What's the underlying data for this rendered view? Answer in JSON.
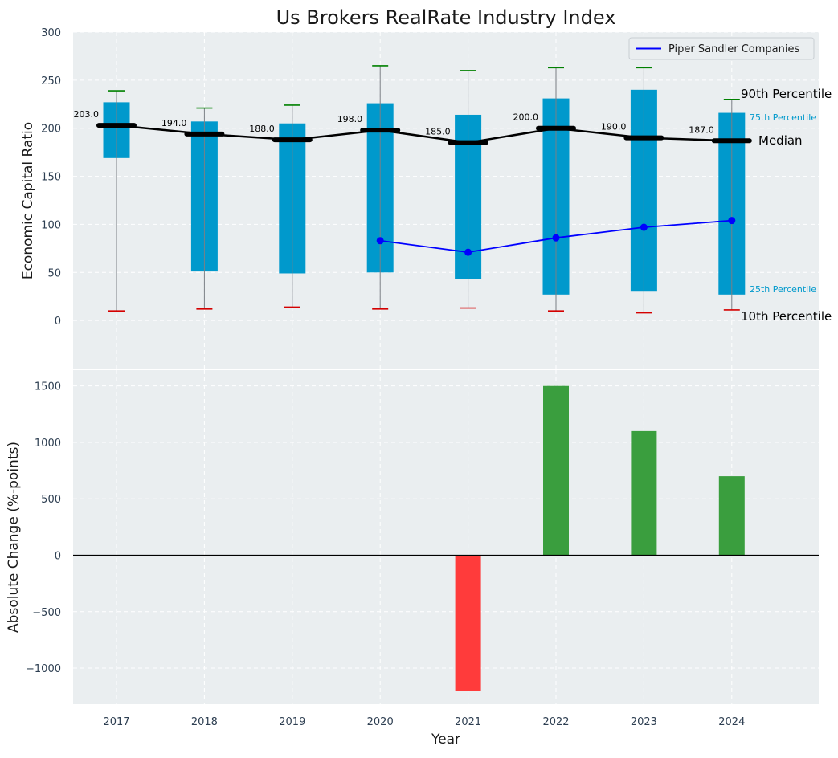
{
  "chart_data": [
    {
      "type": "box",
      "title": "Us Brokers RealRate Industry Index",
      "ylabel": "Economic Capital Ratio",
      "ylim": [
        -50,
        300
      ],
      "yticks": [
        0,
        50,
        100,
        150,
        200,
        250,
        300
      ],
      "categories": [
        "2017",
        "2018",
        "2019",
        "2020",
        "2021",
        "2022",
        "2023",
        "2024"
      ],
      "p10": [
        10,
        12,
        14,
        12,
        13,
        10,
        8,
        11
      ],
      "p25": [
        169,
        51,
        49,
        50,
        43,
        27,
        30,
        27
      ],
      "median": [
        203.0,
        194.0,
        188.0,
        198.0,
        185.0,
        200.0,
        190.0,
        187.0
      ],
      "median_labels": [
        "203.0",
        "194.0",
        "188.0",
        "198.0",
        "185.0",
        "200.0",
        "190.0",
        "187.0"
      ],
      "p75": [
        227,
        207,
        205,
        226,
        214,
        231,
        240,
        216
      ],
      "p90": [
        239,
        221,
        224,
        265,
        260,
        263,
        263,
        230
      ],
      "series": [
        {
          "name": "Piper Sandler Companies",
          "x": [
            "2020",
            "2021",
            "2022",
            "2023",
            "2024"
          ],
          "values": [
            83,
            71,
            86,
            97,
            104
          ],
          "color": "#0000ff"
        }
      ],
      "legend": {
        "position": "top-right",
        "entries": [
          "Piper Sandler Companies"
        ]
      },
      "annotations": {
        "p90": "90th Percentile",
        "p75": "75th Percentile",
        "median": "Median",
        "p25": "25th Percentile",
        "p10": "10th Percentile"
      },
      "grid": true
    },
    {
      "type": "bar",
      "xlabel": "Year",
      "ylabel": "Absolute Change (%-points)",
      "ylim": [
        -1320,
        1640
      ],
      "yticks": [
        -1000,
        -500,
        0,
        500,
        1000,
        1500
      ],
      "ytick_labels": [
        "−1000",
        "−500",
        "0",
        "500",
        "1000",
        "1500"
      ],
      "categories": [
        "2017",
        "2018",
        "2019",
        "2020",
        "2021",
        "2022",
        "2023",
        "2024"
      ],
      "values": [
        0,
        0,
        0,
        0,
        -1200,
        1500,
        1100,
        700
      ],
      "positive_color": "#3a9e3e",
      "negative_color": "#ff3b3b",
      "grid": true
    }
  ],
  "colors": {
    "panel_bg": "#eaeef0",
    "box": "#0099cc",
    "median_line": "#000000",
    "whisker_high": "#008000",
    "whisker_low": "#d40000",
    "tick_text": "#2e3f52"
  }
}
